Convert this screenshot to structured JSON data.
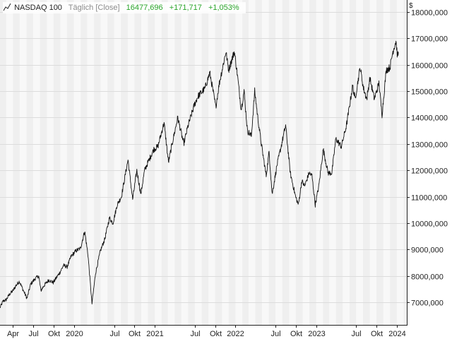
{
  "legend": {
    "title": "NASDAQ 100",
    "mode": "Täglich [Close]",
    "last": "16477,696",
    "change": "+171,717",
    "change_pct": "+1,053%",
    "line_icon": "line-chart-icon"
  },
  "colors": {
    "line": "#111111",
    "band": "#efefef",
    "plot_bg": "#f8f8f8",
    "grid": "#dcdcdc",
    "positive": "#2aa52a"
  },
  "chart_data": {
    "type": "line",
    "title": "NASDAQ 100",
    "currency_label": "$",
    "grid": true,
    "legend_placement": "top-left",
    "ylim": [
      6150,
      18450
    ],
    "y_ticks": [
      {
        "value": 7000,
        "label": "7000,000"
      },
      {
        "value": 8000,
        "label": "8000,000"
      },
      {
        "value": 9000,
        "label": "9000,000"
      },
      {
        "value": 10000,
        "label": "10000,000"
      },
      {
        "value": 11000,
        "label": "11000,000"
      },
      {
        "value": 12000,
        "label": "12000,000"
      },
      {
        "value": 13000,
        "label": "13000,000"
      },
      {
        "value": 14000,
        "label": "14000,000"
      },
      {
        "value": 15000,
        "label": "15000,000"
      },
      {
        "value": 16000,
        "label": "16000,000"
      },
      {
        "value": 17000,
        "label": "17000,000"
      },
      {
        "value": 18000,
        "label": "18000,000"
      }
    ],
    "xlim": [
      "2019-02-01",
      "2024-02-15"
    ],
    "x_ticks": [
      {
        "date": "2019-04-01",
        "label": "Apr"
      },
      {
        "date": "2019-07-01",
        "label": "Jul"
      },
      {
        "date": "2019-10-01",
        "label": "Okt"
      },
      {
        "date": "2020-01-01",
        "label": "2020"
      },
      {
        "date": "2020-07-01",
        "label": "Jul"
      },
      {
        "date": "2020-10-01",
        "label": "Okt"
      },
      {
        "date": "2021-01-01",
        "label": "2021"
      },
      {
        "date": "2021-07-01",
        "label": "Jul"
      },
      {
        "date": "2021-10-01",
        "label": "Okt"
      },
      {
        "date": "2022-01-01",
        "label": "2022"
      },
      {
        "date": "2022-07-01",
        "label": "Jul"
      },
      {
        "date": "2022-10-01",
        "label": "Okt"
      },
      {
        "date": "2023-01-01",
        "label": "2023"
      },
      {
        "date": "2023-07-01",
        "label": "Jul"
      },
      {
        "date": "2023-10-01",
        "label": "Okt"
      },
      {
        "date": "2024-01-01",
        "label": "2024"
      }
    ],
    "series": [
      {
        "points": [
          [
            "2019-02-01",
            6800
          ],
          [
            "2019-02-15",
            7050
          ],
          [
            "2019-03-01",
            7100
          ],
          [
            "2019-03-15",
            7300
          ],
          [
            "2019-04-01",
            7450
          ],
          [
            "2019-04-15",
            7650
          ],
          [
            "2019-04-30",
            7800
          ],
          [
            "2019-05-15",
            7500
          ],
          [
            "2019-06-03",
            7150
          ],
          [
            "2019-06-20",
            7700
          ],
          [
            "2019-07-10",
            7900
          ],
          [
            "2019-07-26",
            8000
          ],
          [
            "2019-08-05",
            7450
          ],
          [
            "2019-08-20",
            7650
          ],
          [
            "2019-09-10",
            7850
          ],
          [
            "2019-09-30",
            7750
          ],
          [
            "2019-10-15",
            7950
          ],
          [
            "2019-10-31",
            8150
          ],
          [
            "2019-11-15",
            8400
          ],
          [
            "2019-12-02",
            8350
          ],
          [
            "2019-12-20",
            8750
          ],
          [
            "2020-01-10",
            8950
          ],
          [
            "2020-01-31",
            9050
          ],
          [
            "2020-02-19",
            9700
          ],
          [
            "2020-03-05",
            8800
          ],
          [
            "2020-03-23",
            6950
          ],
          [
            "2020-04-08",
            8100
          ],
          [
            "2020-04-30",
            8950
          ],
          [
            "2020-05-20",
            9400
          ],
          [
            "2020-06-10",
            10200
          ],
          [
            "2020-06-26",
            10000
          ],
          [
            "2020-07-15",
            10700
          ],
          [
            "2020-08-03",
            11000
          ],
          [
            "2020-08-20",
            11800
          ],
          [
            "2020-09-02",
            12400
          ],
          [
            "2020-09-23",
            10900
          ],
          [
            "2020-10-12",
            12000
          ],
          [
            "2020-10-30",
            11100
          ],
          [
            "2020-11-16",
            12000
          ],
          [
            "2020-12-01",
            12300
          ],
          [
            "2020-12-28",
            12800
          ],
          [
            "2021-01-15",
            12900
          ],
          [
            "2021-02-12",
            13800
          ],
          [
            "2021-03-04",
            12300
          ],
          [
            "2021-03-18",
            12900
          ],
          [
            "2021-04-15",
            14000
          ],
          [
            "2021-05-12",
            13000
          ],
          [
            "2021-06-01",
            13700
          ],
          [
            "2021-06-30",
            14500
          ],
          [
            "2021-07-15",
            14800
          ],
          [
            "2021-08-16",
            15100
          ],
          [
            "2021-09-07",
            15700
          ],
          [
            "2021-10-04",
            14400
          ],
          [
            "2021-10-20",
            15300
          ],
          [
            "2021-11-19",
            16500
          ],
          [
            "2021-12-01",
            15800
          ],
          [
            "2021-12-27",
            16500
          ],
          [
            "2022-01-10",
            15600
          ],
          [
            "2022-01-27",
            14300
          ],
          [
            "2022-02-09",
            15000
          ],
          [
            "2022-02-24",
            13500
          ],
          [
            "2022-03-14",
            13300
          ],
          [
            "2022-03-29",
            15000
          ],
          [
            "2022-04-12",
            14000
          ],
          [
            "2022-04-28",
            13000
          ],
          [
            "2022-05-20",
            11800
          ],
          [
            "2022-06-02",
            12700
          ],
          [
            "2022-06-16",
            11100
          ],
          [
            "2022-07-08",
            12200
          ],
          [
            "2022-07-29",
            13000
          ],
          [
            "2022-08-16",
            13700
          ],
          [
            "2022-09-06",
            11900
          ],
          [
            "2022-09-30",
            11000
          ],
          [
            "2022-10-13",
            10700
          ],
          [
            "2022-10-28",
            11600
          ],
          [
            "2022-11-10",
            11400
          ],
          [
            "2022-11-30",
            11900
          ],
          [
            "2022-12-13",
            11800
          ],
          [
            "2022-12-28",
            10700
          ],
          [
            "2023-01-13",
            11400
          ],
          [
            "2023-02-02",
            12800
          ],
          [
            "2023-02-24",
            11900
          ],
          [
            "2023-03-13",
            11900
          ],
          [
            "2023-03-31",
            13200
          ],
          [
            "2023-04-25",
            12900
          ],
          [
            "2023-05-18",
            13700
          ],
          [
            "2023-06-15",
            15200
          ],
          [
            "2023-06-26",
            14700
          ],
          [
            "2023-07-19",
            15900
          ],
          [
            "2023-08-03",
            15100
          ],
          [
            "2023-08-18",
            14700
          ],
          [
            "2023-09-01",
            15500
          ],
          [
            "2023-09-21",
            14700
          ],
          [
            "2023-10-12",
            15300
          ],
          [
            "2023-10-26",
            14100
          ],
          [
            "2023-11-14",
            15800
          ],
          [
            "2023-12-01",
            15900
          ],
          [
            "2023-12-14",
            16500
          ],
          [
            "2023-12-28",
            16900
          ],
          [
            "2024-01-04",
            16300
          ],
          [
            "2024-01-08",
            16480
          ]
        ]
      }
    ]
  }
}
